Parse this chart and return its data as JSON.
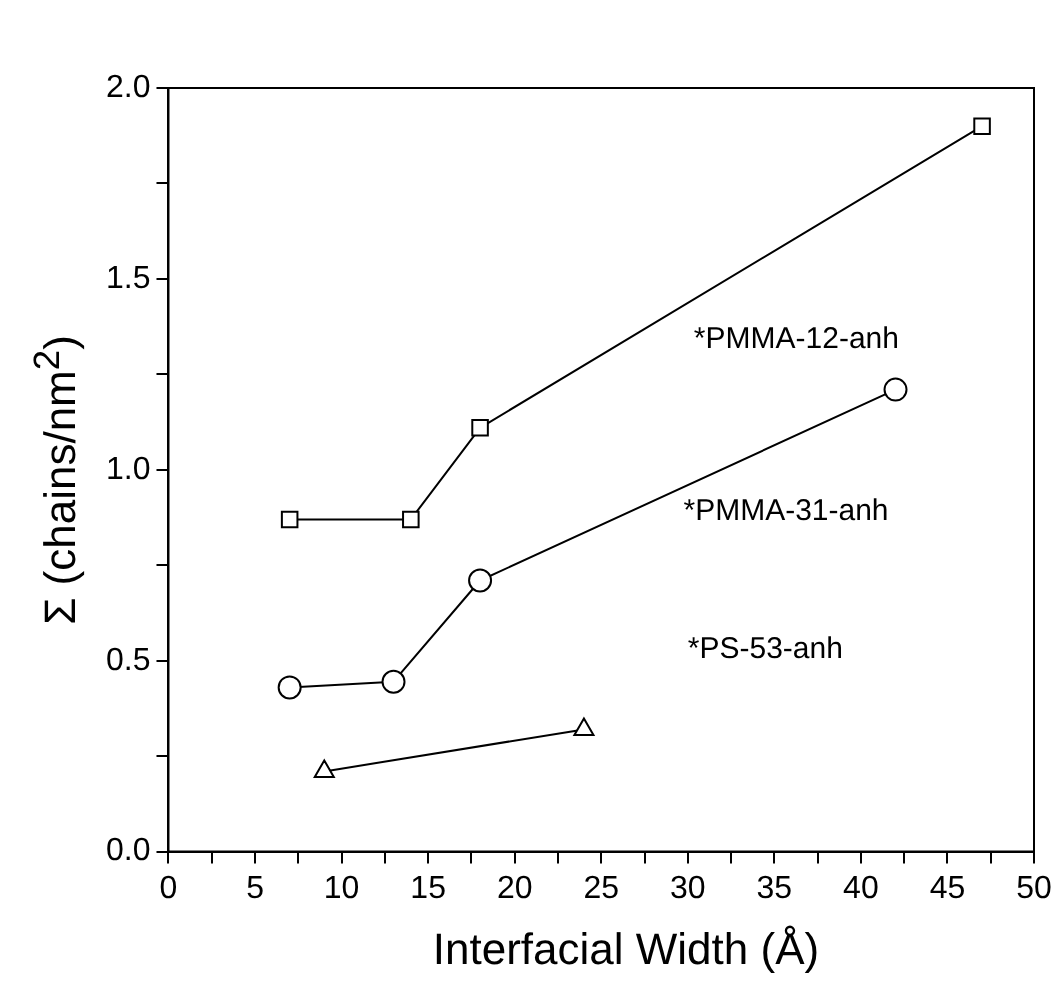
{
  "chart_data": {
    "type": "line",
    "xlabel": "Interfacial Width (Å)",
    "ylabel": "Σ (chains/nm$^{2}$)",
    "xlim": [
      0,
      50
    ],
    "ylim": [
      0,
      2
    ],
    "xticks": [
      0,
      {
        "value": 2.5,
        "label": null
      },
      5,
      {
        "value": 7.5,
        "label": null
      },
      10,
      {
        "value": 12.5,
        "label": null
      },
      15,
      {
        "value": 17.5,
        "label": null
      },
      20,
      {
        "value": 22.5,
        "label": null
      },
      25,
      {
        "value": 27.5,
        "label": null
      },
      30,
      {
        "value": 32.5,
        "label": null
      },
      35,
      {
        "value": 37.5,
        "label": null
      },
      40,
      {
        "value": 42.5,
        "label": null
      },
      45,
      {
        "value": 47.5,
        "label": null
      },
      50
    ],
    "yticks": [
      {
        "value": 0,
        "label": "0.0"
      },
      {
        "value": 0.25,
        "label": null
      },
      {
        "value": 0.5,
        "label": "0.5"
      },
      {
        "value": 0.75,
        "label": null
      },
      {
        "value": 1,
        "label": "1.0"
      },
      {
        "value": 1.25,
        "label": null
      },
      {
        "value": 1.5,
        "label": "1.5"
      },
      {
        "value": 1.75,
        "label": null
      },
      {
        "value": 2,
        "label": "2.0"
      }
    ],
    "grid": false,
    "legend": false,
    "line_style": "solid",
    "series": [
      {
        "color": "#000000",
        "marker": "square",
        "x": [
          7,
          14,
          18,
          47
        ],
        "values": [
          0.87,
          0.87,
          1.11,
          1.9
        ]
      },
      {
        "color": "#000000",
        "marker": "circle",
        "x": [
          7,
          13,
          18,
          42
        ],
        "values": [
          0.43,
          0.445,
          0.71,
          1.21
        ]
      },
      {
        "color": "#000000",
        "marker": "triangle",
        "x": [
          9,
          24
        ],
        "values": [
          0.21,
          0.32
        ]
      }
    ],
    "annotations": [
      "*PMMA-12-anh",
      "*PMMA-31-anh",
      "*PS-53-anh"
    ]
  }
}
